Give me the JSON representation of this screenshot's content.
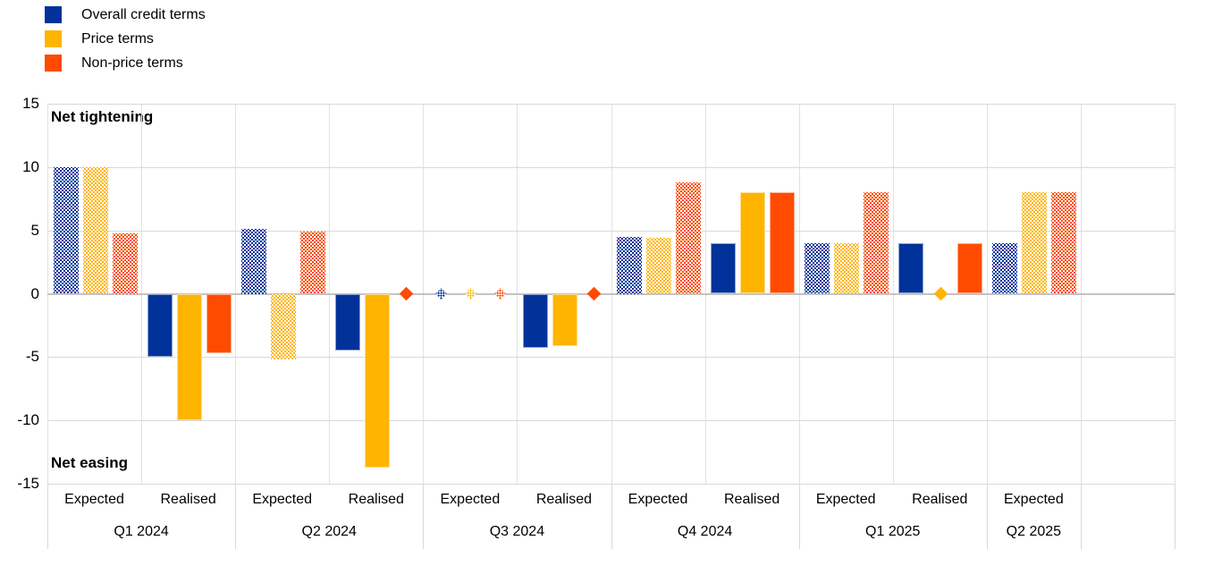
{
  "legend": {
    "items": [
      {
        "label": "Overall credit terms",
        "color": "#003299"
      },
      {
        "label": "Price terms",
        "color": "#FFB400"
      },
      {
        "label": "Non-price terms",
        "color": "#FF4B00"
      }
    ]
  },
  "annotations": {
    "top": "Net tightening",
    "bottom": "Net easing"
  },
  "chart_data": {
    "type": "bar",
    "title": "",
    "xlabel": "",
    "ylabel": "",
    "ylim": [
      -15,
      15
    ],
    "yticks": [
      15,
      10,
      5,
      0,
      -5,
      -10,
      -15
    ],
    "grid": true,
    "legend_position": "top-left",
    "expected_fill": "hatched",
    "realised_fill": "solid",
    "zero_values_rendered_as": "diamond-marker",
    "series": [
      {
        "name": "Overall credit terms",
        "color": "#003299"
      },
      {
        "name": "Price terms",
        "color": "#FFB400"
      },
      {
        "name": "Non-price terms",
        "color": "#FF4B00"
      }
    ],
    "groups": [
      {
        "quarter": "Q1 2024",
        "subgroups": [
          {
            "label": "Expected",
            "fill": "hatched",
            "values": [
              10,
              10,
              4.8
            ]
          },
          {
            "label": "Realised",
            "fill": "solid",
            "values": [
              -5,
              -10,
              -4.7
            ]
          }
        ]
      },
      {
        "quarter": "Q2 2024",
        "subgroups": [
          {
            "label": "Expected",
            "fill": "hatched",
            "values": [
              5.1,
              -5.2,
              4.9
            ]
          },
          {
            "label": "Realised",
            "fill": "solid",
            "values": [
              -4.5,
              -13.7,
              0
            ]
          }
        ]
      },
      {
        "quarter": "Q3 2024",
        "subgroups": [
          {
            "label": "Expected",
            "fill": "hatched",
            "values": [
              0,
              0,
              0
            ]
          },
          {
            "label": "Realised",
            "fill": "solid",
            "values": [
              -4.3,
              -4.1,
              0
            ]
          }
        ]
      },
      {
        "quarter": "Q4 2024",
        "subgroups": [
          {
            "label": "Expected",
            "fill": "hatched",
            "values": [
              4.5,
              4.4,
              8.8
            ]
          },
          {
            "label": "Realised",
            "fill": "solid",
            "values": [
              4,
              8,
              8
            ]
          }
        ]
      },
      {
        "quarter": "Q1 2025",
        "subgroups": [
          {
            "label": "Expected",
            "fill": "hatched",
            "values": [
              4,
              4,
              8
            ]
          },
          {
            "label": "Realised",
            "fill": "solid",
            "values": [
              4,
              0,
              4
            ]
          }
        ]
      },
      {
        "quarter": "Q2 2025",
        "subgroups": [
          {
            "label": "Expected",
            "fill": "hatched",
            "values": [
              4,
              8,
              8
            ]
          }
        ]
      }
    ]
  }
}
